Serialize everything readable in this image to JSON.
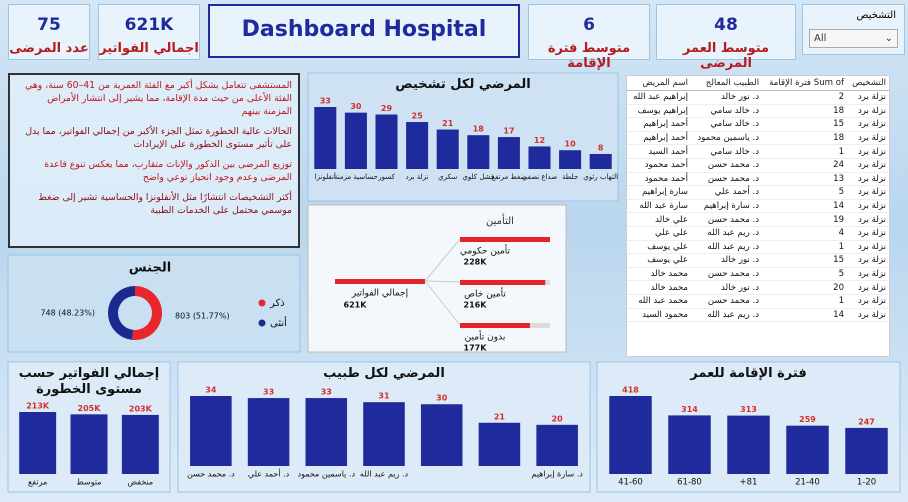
{
  "header": {
    "title": "Dashboard Hospital"
  },
  "kpis": [
    {
      "value": 75,
      "label": "عدد المرضى"
    },
    {
      "value": "621K",
      "label": "اجمالي الفواتير"
    },
    {
      "value": 6,
      "label": "متوسط فترة الإقامة"
    },
    {
      "value": 48,
      "label": "متوسط العمر المرضى"
    }
  ],
  "slicer": {
    "title": "التشخيص",
    "selected": "All"
  },
  "insights": [
    "المستشفى تتعامل بشكل أكبر مع الفئة العمرية من 41–60 سنة، وهي الفئة الأعلى من حيث مدة الإقامة، مما يشير إلى انتشار الأمراض المزمنة بينهم",
    "الحالات عالية الخطورة تمثل الجزء الأكبر من إجمالي الفواتير، مما يدل على تأثير مستوى الخطورة على الإيرادات",
    "توزيع المرضى بين الذكور والإناث متقارب، مما يعكس تنوع قاعدة المرضى وعدم وجود انحياز نوعي واضح",
    "أكثر التشخيصات انتشارًا مثل الأنفلونزا والحساسية تشير إلى ضغط موسمي محتمل على الخدمات الطبية"
  ],
  "table": {
    "columns": [
      "التشخيص",
      "Sum of فترة الإقامة",
      "الطبيب المعالج",
      "اسم المريض"
    ],
    "rows": [
      [
        "نزلة برد",
        2,
        "د. نور خالد",
        "إبراهيم عبد الله"
      ],
      [
        "نزلة برد",
        18,
        "د. خالد سامي",
        "إبراهيم يوسف"
      ],
      [
        "نزلة برد",
        15,
        "د. خالد سامي",
        "أحمد إبراهيم"
      ],
      [
        "نزلة برد",
        18,
        "د. ياسمين محمود",
        "أحمد إبراهيم"
      ],
      [
        "نزلة برد",
        1,
        "د. خالد سامي",
        "أحمد السيد"
      ],
      [
        "نزلة برد",
        24,
        "د. محمد حسن",
        "أحمد محمود"
      ],
      [
        "نزلة برد",
        13,
        "د. محمد حسن",
        "أحمد محمود"
      ],
      [
        "نزلة برد",
        5,
        "د. أحمد علي",
        "سارة إبراهيم"
      ],
      [
        "نزلة برد",
        14,
        "د. سارة إبراهيم",
        "سارة عبد الله"
      ],
      [
        "نزلة برد",
        19,
        "د. محمد حسن",
        "علي خالد"
      ],
      [
        "نزلة برد",
        4,
        "د. ريم عبد الله",
        "علي علي"
      ],
      [
        "نزلة برد",
        1,
        "د. ريم عبد الله",
        "علي يوسف"
      ],
      [
        "نزلة برد",
        15,
        "د. نور خالد",
        "علي يوسف"
      ],
      [
        "نزلة برد",
        5,
        "د. محمد حسن",
        "محمد خالد"
      ],
      [
        "نزلة برد",
        20,
        "د. نور خالد",
        "محمد خالد"
      ],
      [
        "نزلة برد",
        1,
        "د. محمد حسن",
        "محمد عبد الله"
      ],
      [
        "نزلة برد",
        14,
        "د. ريم عبد الله",
        "محمود السيد"
      ]
    ]
  },
  "chart_data": [
    {
      "type": "bar",
      "title": "المرضي لكل تشخيص",
      "categories": [
        "أنفلونزا",
        "حساسية مزمنة",
        "كسور",
        "نزلة برد",
        "سكري",
        "فشل كلوي",
        "ضغط مرتفع",
        "صداع نصفي",
        "جلطة",
        "التهاب رئوي"
      ],
      "values": [
        33,
        30,
        29,
        25,
        21,
        18,
        17,
        12,
        10,
        8
      ],
      "color": "#1f2b9c",
      "label_color": "#d32f2f"
    },
    {
      "type": "tree",
      "title": "التأمين",
      "total_name": "إجمالي الفواتير",
      "total": 621000,
      "total_label": "621K",
      "categories": [
        "تأمين حكومي",
        "تأمين خاص",
        "بدون تأمين"
      ],
      "values": [
        228000,
        216000,
        177000
      ],
      "value_labels": [
        "228K",
        "216K",
        "177K"
      ],
      "color": "#e3252b"
    },
    {
      "type": "pie",
      "title": "الجنس",
      "categories": [
        "ذكر",
        "أنثى"
      ],
      "values": [
        803,
        748
      ],
      "value_labels": [
        "803 (51.77%)",
        "748 (48.23%)"
      ],
      "colors": [
        "#e8262b",
        "#1a2a8f"
      ],
      "donut": true
    },
    {
      "type": "bar",
      "title": "إجمالي الفواتير حسب مستوى الخطورة",
      "categories": [
        "مرتفع",
        "متوسط",
        "منخفض"
      ],
      "values": [
        213000,
        205000,
        203000
      ],
      "value_labels": [
        "213K",
        "205K",
        "203K"
      ],
      "color": "#1f2b9c",
      "label_color": "#d32f2f"
    },
    {
      "type": "bar",
      "title": "المرضي لكل طبيب",
      "categories": [
        "د. محمد حسن",
        "د. أحمد علي",
        "د. ياسمين محمود",
        "د. ريم عبد الله",
        null,
        null,
        "د. سارة إبراهيم"
      ],
      "values": [
        34,
        33,
        33,
        31,
        30,
        21,
        20
      ],
      "color": "#1f2b9c",
      "label_color": "#d32f2f"
    },
    {
      "type": "bar",
      "title": "فترة الإقامة للعمر",
      "categories": [
        "41-60",
        "61-80",
        "81+",
        "21-40",
        "1-20"
      ],
      "values": [
        418,
        314,
        313,
        259,
        247
      ],
      "color": "#1f2b9c",
      "label_color": "#d32f2f"
    }
  ]
}
